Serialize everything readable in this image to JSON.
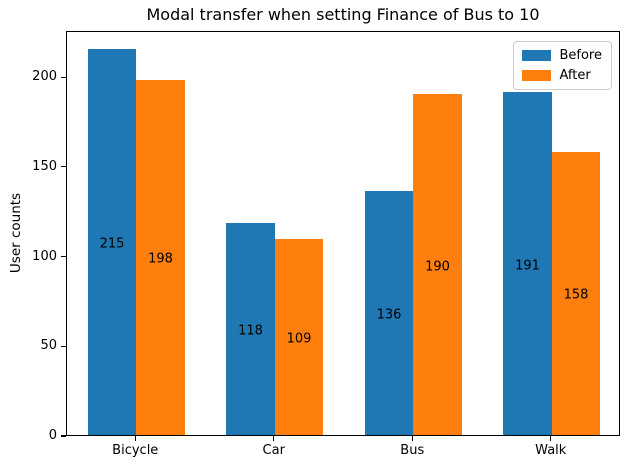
{
  "chart_data": {
    "type": "bar",
    "title": "Modal transfer when setting Finance of Bus to 10",
    "xlabel": "",
    "ylabel": "User counts",
    "categories": [
      "Bicycle",
      "Car",
      "Bus",
      "Walk"
    ],
    "series": [
      {
        "name": "Before",
        "color": "#1f77b4",
        "values": [
          215,
          118,
          136,
          191
        ]
      },
      {
        "name": "After",
        "color": "#ff7f0e",
        "values": [
          198,
          109,
          190,
          158
        ]
      }
    ],
    "ylim": [
      0,
      225.75
    ],
    "yticks": [
      0,
      50,
      100,
      150,
      200
    ],
    "grid": false,
    "legend_position": "upper right",
    "bar_value_labels": true,
    "bar_width_fraction": 0.35,
    "colors": {
      "spine": "#000000",
      "text": "#000000",
      "background": "#ffffff",
      "legend_border": "#cccccc"
    }
  }
}
